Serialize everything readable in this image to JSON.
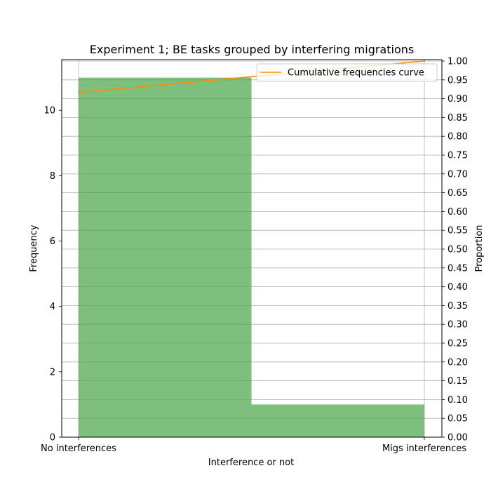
{
  "chart_data": {
    "type": "bar",
    "title": "Experiment 1; BE tasks grouped by interfering migrations",
    "xlabel": "Interference or not",
    "ylabel": "Frequency",
    "y2label": "Proportion",
    "categories": [
      "No interferences",
      "Migs interferences"
    ],
    "values": [
      11,
      1
    ],
    "ylim": [
      0,
      11.55
    ],
    "y_ticks": [
      0,
      2,
      4,
      6,
      8,
      10
    ],
    "y2lim": [
      0,
      1
    ],
    "y2_ticks": [
      "0.00",
      "0.05",
      "0.10",
      "0.15",
      "0.20",
      "0.25",
      "0.30",
      "0.35",
      "0.40",
      "0.45",
      "0.50",
      "0.55",
      "0.60",
      "0.65",
      "0.70",
      "0.75",
      "0.80",
      "0.85",
      "0.90",
      "0.95",
      "1.00"
    ],
    "cumulative": {
      "name": "Cumulative frequencies curve",
      "values": [
        0.9167,
        1.0
      ],
      "color": "#ff8c00"
    },
    "bar_color": "#4ca64c",
    "grid": true,
    "legend_position": "top-right"
  }
}
